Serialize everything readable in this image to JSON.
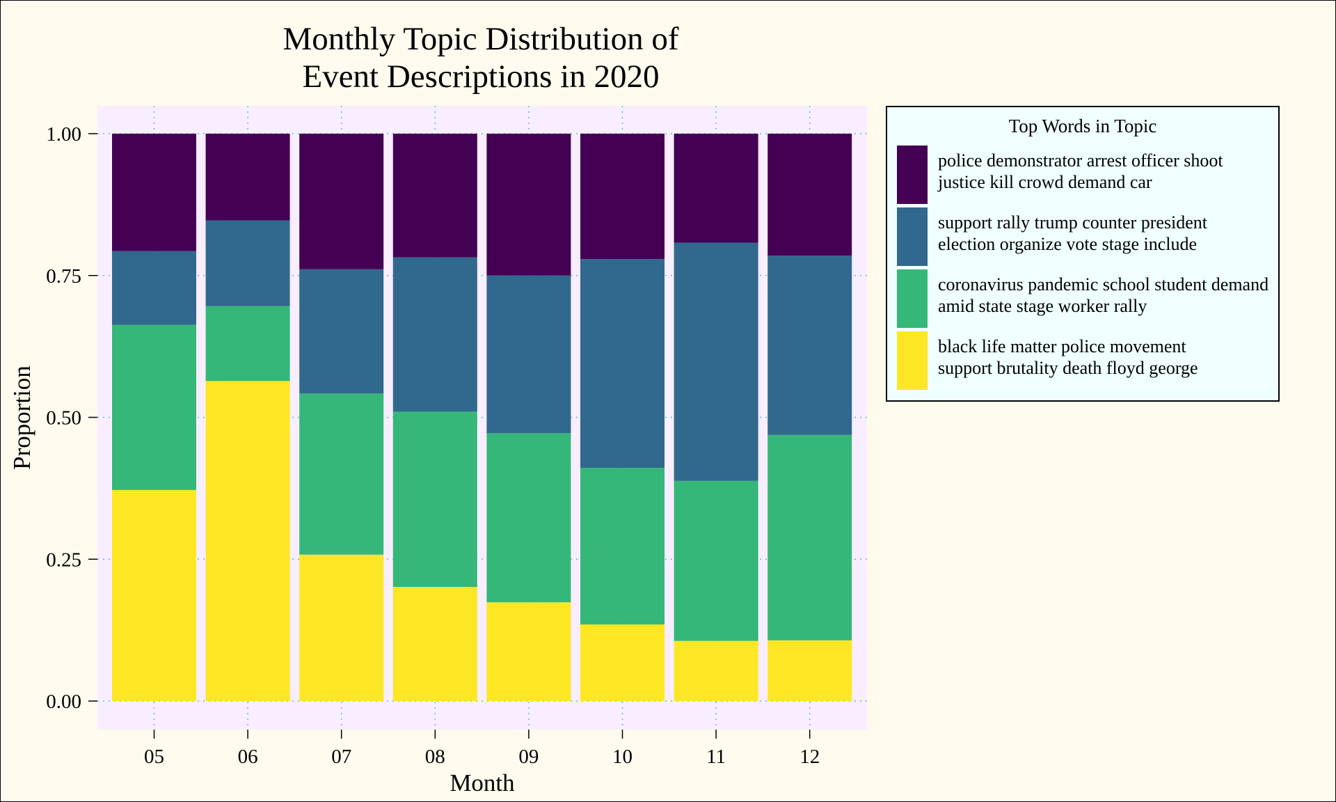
{
  "chart_data": {
    "type": "bar",
    "stacked": true,
    "title": "Monthly Topic Distribution of\nEvent Descriptions in 2020",
    "xlabel": "Month",
    "ylabel": "Proportion",
    "ylim": [
      0,
      1
    ],
    "yticks": [
      "0.00",
      "0.25",
      "0.50",
      "0.75",
      "1.00"
    ],
    "categories": [
      "05",
      "06",
      "07",
      "08",
      "09",
      "10",
      "11",
      "12"
    ],
    "legend": {
      "title": "Top Words in Topic",
      "placement": "right"
    },
    "series": [
      {
        "name": "black life matter police movement\nsupport brutality death floyd george",
        "color": "#fde725",
        "values": [
          0.372,
          0.564,
          0.258,
          0.201,
          0.174,
          0.135,
          0.106,
          0.107
        ]
      },
      {
        "name": "coronavirus pandemic school student demand\namid state stage worker rally",
        "color": "#35b779",
        "values": [
          0.291,
          0.132,
          0.284,
          0.309,
          0.298,
          0.276,
          0.282,
          0.362
        ]
      },
      {
        "name": "support rally trump counter president\nelection organize vote stage include",
        "color": "#31688e",
        "values": [
          0.13,
          0.151,
          0.219,
          0.272,
          0.278,
          0.368,
          0.42,
          0.316
        ]
      },
      {
        "name": "police demonstrator arrest officer shoot\njustice kill crowd demand car",
        "color": "#440154",
        "values": [
          0.207,
          0.153,
          0.239,
          0.218,
          0.25,
          0.221,
          0.192,
          0.215
        ]
      }
    ],
    "colors": {
      "panel_background": "#f8eeff",
      "page_background": "#fefaee",
      "legend_background": "#efffff",
      "gridline": "#5fb8c8"
    },
    "grid": "dotted major gridlines"
  }
}
